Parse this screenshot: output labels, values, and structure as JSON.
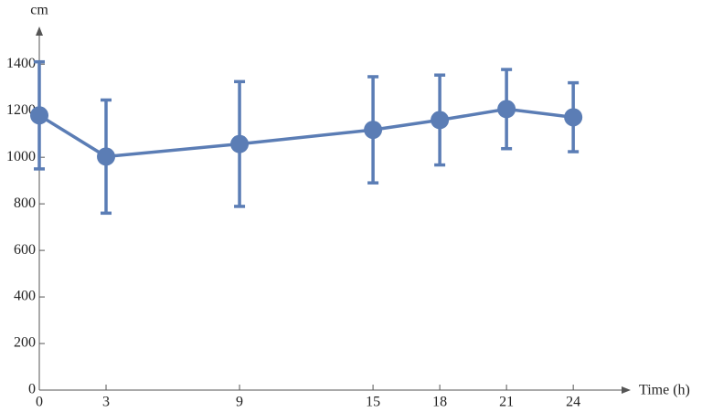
{
  "chart_data": {
    "type": "line",
    "x_label": "Time (h)",
    "y_label": "cm",
    "x": [
      0,
      3,
      9,
      15,
      18,
      21,
      24
    ],
    "values": [
      1180,
      1003,
      1057,
      1118,
      1160,
      1207,
      1172
    ],
    "errors": [
      230,
      243,
      268,
      228,
      193,
      170,
      148
    ],
    "color": "#5b7db5",
    "xlim": [
      0,
      26.5
    ],
    "ylim": [
      0,
      1550
    ],
    "xticks": [
      0,
      3,
      9,
      15,
      18,
      21,
      24
    ],
    "yticks": [
      0,
      200,
      400,
      600,
      800,
      1000,
      1200,
      1400
    ]
  }
}
